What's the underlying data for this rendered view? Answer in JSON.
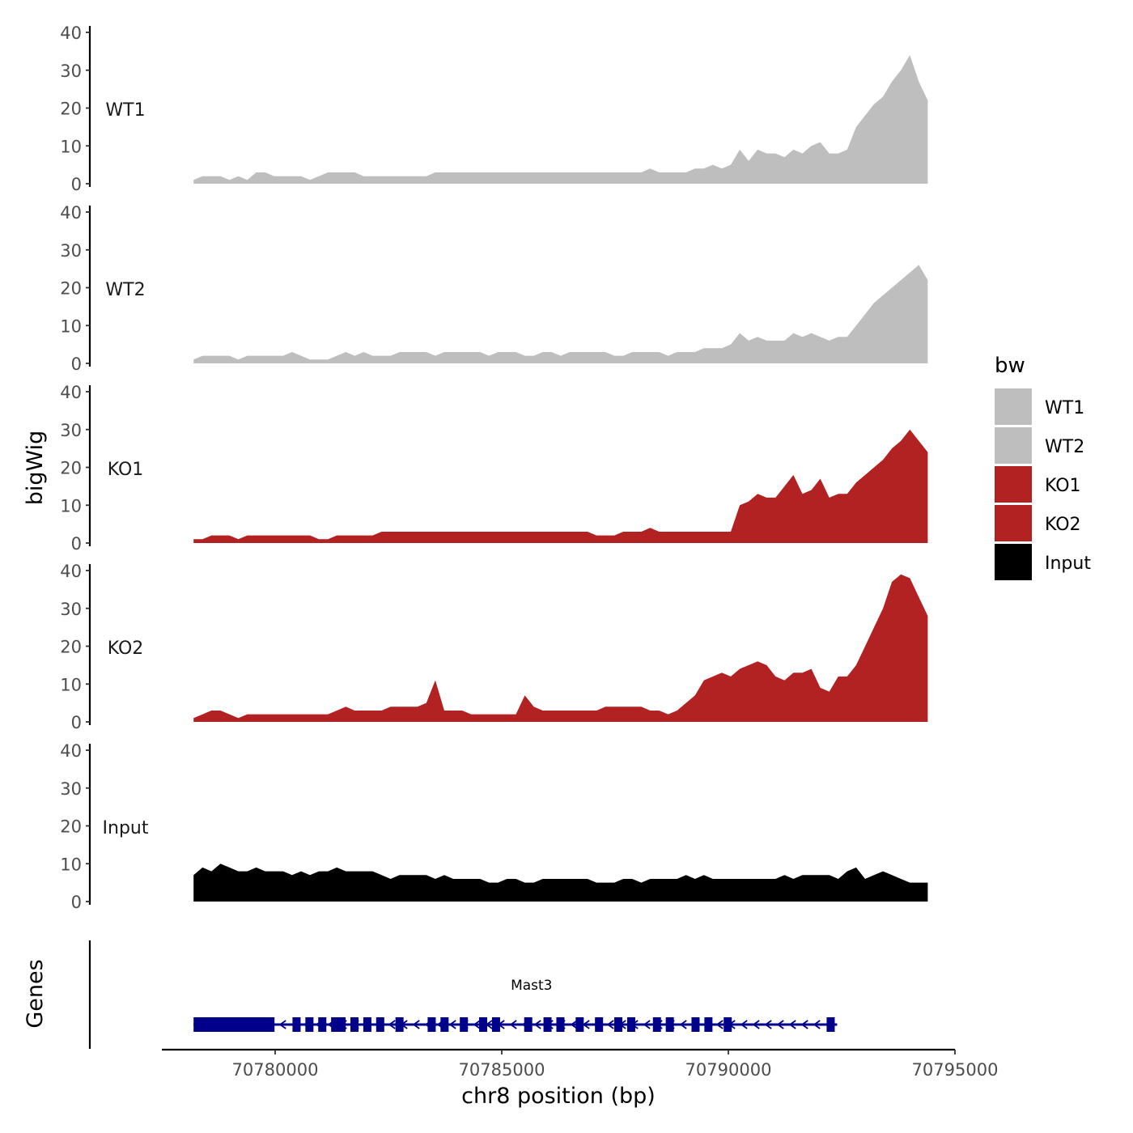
{
  "chart_data": {
    "type": "area",
    "title": "",
    "ylabel": "bigWig",
    "xlabel": "chr8 position (bp)",
    "genes_label": "Genes",
    "ylim": [
      0,
      40
    ],
    "y_ticks": [
      0,
      10,
      20,
      30,
      40
    ],
    "y_tick_labels": [
      "0",
      "10",
      "20",
      "30",
      "40"
    ],
    "xlim": [
      70777500,
      70795000
    ],
    "x_ticks": [
      70780000,
      70785000,
      70790000,
      70795000
    ],
    "x_tick_labels": [
      "70780000",
      "70785000",
      "70790000",
      "70795000"
    ],
    "region": [
      70778200,
      70794400
    ],
    "legend": {
      "title": "bw",
      "position": "right",
      "entries": [
        {
          "label": "WT1",
          "color": "#bebebe"
        },
        {
          "label": "WT2",
          "color": "#bebebe"
        },
        {
          "label": "KO1",
          "color": "#b22222"
        },
        {
          "label": "KO2",
          "color": "#b22222"
        },
        {
          "label": "Input",
          "color": "#000000"
        }
      ]
    },
    "series": [
      {
        "name": "WT1",
        "color": "#bebebe",
        "values": [
          1,
          2,
          2,
          2,
          1,
          2,
          1,
          3,
          3,
          2,
          2,
          2,
          2,
          1,
          2,
          3,
          3,
          3,
          3,
          2,
          2,
          2,
          2,
          2,
          2,
          2,
          2,
          3,
          3,
          3,
          3,
          3,
          3,
          3,
          3,
          3,
          3,
          3,
          3,
          3,
          3,
          3,
          3,
          3,
          3,
          3,
          3,
          3,
          3,
          3,
          3,
          4,
          3,
          3,
          3,
          3,
          4,
          4,
          5,
          4,
          5,
          9,
          6,
          9,
          8,
          8,
          7,
          9,
          8,
          10,
          11,
          8,
          8,
          9,
          15,
          18,
          21,
          23,
          27,
          30,
          34,
          27,
          22
        ]
      },
      {
        "name": "WT2",
        "color": "#bebebe",
        "values": [
          1,
          2,
          2,
          2,
          2,
          1,
          2,
          2,
          2,
          2,
          2,
          3,
          2,
          1,
          1,
          1,
          2,
          3,
          2,
          3,
          2,
          2,
          2,
          3,
          3,
          3,
          3,
          2,
          3,
          3,
          3,
          3,
          3,
          2,
          3,
          3,
          3,
          2,
          2,
          3,
          3,
          2,
          3,
          3,
          3,
          3,
          3,
          2,
          2,
          3,
          3,
          3,
          3,
          2,
          3,
          3,
          3,
          4,
          4,
          4,
          5,
          8,
          6,
          7,
          6,
          6,
          6,
          8,
          7,
          8,
          7,
          6,
          7,
          7,
          10,
          13,
          16,
          18,
          20,
          22,
          24,
          26,
          22
        ]
      },
      {
        "name": "KO1",
        "color": "#b22222",
        "values": [
          1,
          1,
          2,
          2,
          2,
          1,
          2,
          2,
          2,
          2,
          2,
          2,
          2,
          2,
          1,
          1,
          2,
          2,
          2,
          2,
          2,
          3,
          3,
          3,
          3,
          3,
          3,
          3,
          3,
          3,
          3,
          3,
          3,
          3,
          3,
          3,
          3,
          3,
          3,
          3,
          3,
          3,
          3,
          3,
          3,
          2,
          2,
          2,
          3,
          3,
          3,
          4,
          3,
          3,
          3,
          3,
          3,
          3,
          3,
          3,
          3,
          10,
          11,
          13,
          12,
          12,
          15,
          18,
          13,
          14,
          17,
          12,
          13,
          13,
          16,
          18,
          20,
          22,
          25,
          27,
          30,
          27,
          24
        ]
      },
      {
        "name": "KO2",
        "color": "#b22222",
        "values": [
          1,
          2,
          3,
          3,
          2,
          1,
          2,
          2,
          2,
          2,
          2,
          2,
          2,
          2,
          2,
          2,
          3,
          4,
          3,
          3,
          3,
          3,
          4,
          4,
          4,
          4,
          5,
          11,
          3,
          3,
          3,
          2,
          2,
          2,
          2,
          2,
          2,
          7,
          4,
          3,
          3,
          3,
          3,
          3,
          3,
          3,
          4,
          4,
          4,
          4,
          4,
          3,
          3,
          2,
          3,
          5,
          7,
          11,
          12,
          13,
          12,
          14,
          15,
          16,
          15,
          12,
          11,
          13,
          13,
          14,
          9,
          8,
          12,
          12,
          15,
          20,
          25,
          30,
          37,
          39,
          38,
          33,
          28
        ]
      },
      {
        "name": "Input",
        "color": "#000000",
        "values": [
          7,
          9,
          8,
          10,
          9,
          8,
          8,
          9,
          8,
          8,
          8,
          7,
          8,
          7,
          8,
          8,
          9,
          8,
          8,
          8,
          8,
          7,
          6,
          7,
          7,
          7,
          7,
          6,
          7,
          6,
          6,
          6,
          6,
          5,
          5,
          6,
          6,
          5,
          5,
          6,
          6,
          6,
          6,
          6,
          6,
          5,
          5,
          5,
          6,
          6,
          5,
          6,
          6,
          6,
          6,
          7,
          6,
          7,
          6,
          6,
          6,
          6,
          6,
          6,
          6,
          6,
          7,
          6,
          7,
          7,
          7,
          7,
          6,
          8,
          9,
          6,
          7,
          8,
          7,
          6,
          5,
          5,
          5
        ]
      }
    ],
    "genes": [
      {
        "name": "Mast3",
        "strand": "-",
        "start": 70778200,
        "end": 70792400
      }
    ]
  }
}
